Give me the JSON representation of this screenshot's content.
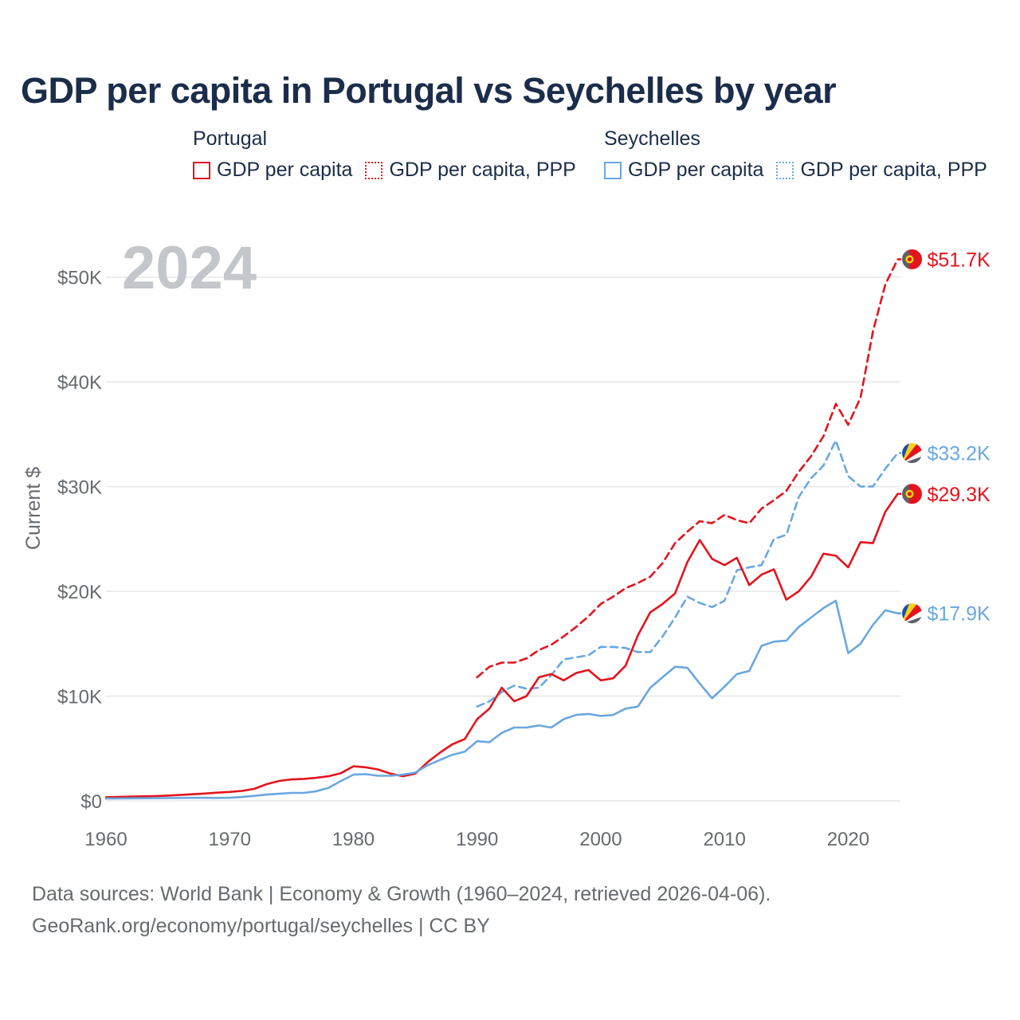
{
  "chart_data": {
    "type": "line",
    "title": "GDP per capita in Portugal vs Seychelles by year",
    "ylabel": "Current $",
    "xlabel": "",
    "year_watermark": "2024",
    "xlim": [
      1960,
      2025
    ],
    "ylim": [
      0,
      55000
    ],
    "x_ticks": [
      {
        "value": 1960,
        "label": "1960"
      },
      {
        "value": 1970,
        "label": "1970"
      },
      {
        "value": 1980,
        "label": "1980"
      },
      {
        "value": 1990,
        "label": "1990"
      },
      {
        "value": 2000,
        "label": "2000"
      },
      {
        "value": 2010,
        "label": "2010"
      },
      {
        "value": 2020,
        "label": "2020"
      }
    ],
    "y_ticks": [
      {
        "value": 0,
        "label": "$0"
      },
      {
        "value": 10000,
        "label": "$10K"
      },
      {
        "value": 20000,
        "label": "$20K"
      },
      {
        "value": 30000,
        "label": "$30K"
      },
      {
        "value": 40000,
        "label": "$40K"
      },
      {
        "value": 50000,
        "label": "$50K"
      }
    ],
    "legend": {
      "groups": [
        {
          "title": "Portugal",
          "items": [
            "GDP per capita",
            "GDP per capita, PPP"
          ]
        },
        {
          "title": "Seychelles",
          "items": [
            "GDP per capita",
            "GDP per capita, PPP"
          ]
        }
      ]
    },
    "colors": {
      "portugal": "#e3141d",
      "seychelles": "#6aa7e0"
    },
    "series": [
      {
        "name": "Portugal GDP per capita, PPP",
        "country": "portugal",
        "style": "dashed",
        "start_year": 1990,
        "values": [
          11800,
          12800,
          13200,
          13200,
          13600,
          14400,
          14900,
          15700,
          16600,
          17600,
          18800,
          19500,
          20300,
          20800,
          21400,
          22700,
          24600,
          25700,
          26700,
          26500,
          27300,
          26800,
          26500,
          27900,
          28700,
          29600,
          31400,
          32900,
          34800,
          37900,
          35900,
          38500,
          44800,
          49300,
          51700,
          51700
        ],
        "end_label": "$51.7K"
      },
      {
        "name": "Seychelles GDP per capita, PPP",
        "country": "seychelles",
        "style": "dashed",
        "start_year": 1990,
        "values": [
          9000,
          9500,
          10400,
          11000,
          10700,
          10800,
          12000,
          13500,
          13700,
          13900,
          14700,
          14700,
          14600,
          14200,
          14200,
          15700,
          17500,
          19500,
          18900,
          18500,
          19100,
          22000,
          22300,
          22500,
          25000,
          25400,
          29000,
          30800,
          32000,
          34400,
          31000,
          30000,
          30000,
          31700,
          33200,
          33200
        ],
        "end_label": "$33.2K"
      },
      {
        "name": "Portugal GDP per capita",
        "country": "portugal",
        "style": "solid",
        "start_year": 1960,
        "values": [
          350,
          380,
          400,
          430,
          460,
          500,
          560,
          630,
          700,
          780,
          850,
          950,
          1150,
          1600,
          1900,
          2050,
          2100,
          2200,
          2350,
          2650,
          3300,
          3200,
          3000,
          2600,
          2350,
          2600,
          3700,
          4600,
          5400,
          5900,
          7800,
          8800,
          10800,
          9500,
          10000,
          11800,
          12100,
          11500,
          12200,
          12500,
          11500,
          11700,
          12900,
          15800,
          18000,
          18800,
          19800,
          22800,
          24900,
          23100,
          22500,
          23200,
          20600,
          21600,
          22100,
          19200,
          20000,
          21400,
          23600,
          23400,
          22300,
          24700,
          24600,
          27600,
          29300,
          29300
        ],
        "end_label": "$29.3K"
      },
      {
        "name": "Seychelles GDP per capita",
        "country": "seychelles",
        "style": "solid",
        "start_year": 1960,
        "values": [
          220,
          230,
          240,
          250,
          260,
          270,
          280,
          290,
          290,
          280,
          300,
          370,
          480,
          600,
          680,
          760,
          760,
          920,
          1250,
          1900,
          2500,
          2550,
          2400,
          2400,
          2500,
          2700,
          3400,
          3900,
          4400,
          4700,
          5700,
          5600,
          6500,
          7000,
          7000,
          7200,
          7000,
          7800,
          8200,
          8300,
          8100,
          8200,
          8800,
          9000,
          10800,
          11800,
          12800,
          12700,
          11200,
          9800,
          10900,
          12100,
          12400,
          14800,
          15200,
          15300,
          16600,
          17500,
          18400,
          19100,
          14100,
          15000,
          16800,
          18200,
          17900,
          17900
        ],
        "end_label": "$17.9K"
      }
    ]
  },
  "footer": {
    "sources": "Data sources: World Bank | Economy & Growth (1960–2024, retrieved 2026-04-06).",
    "credit": "GeoRank.org/economy/portugal/seychelles | CC BY"
  }
}
